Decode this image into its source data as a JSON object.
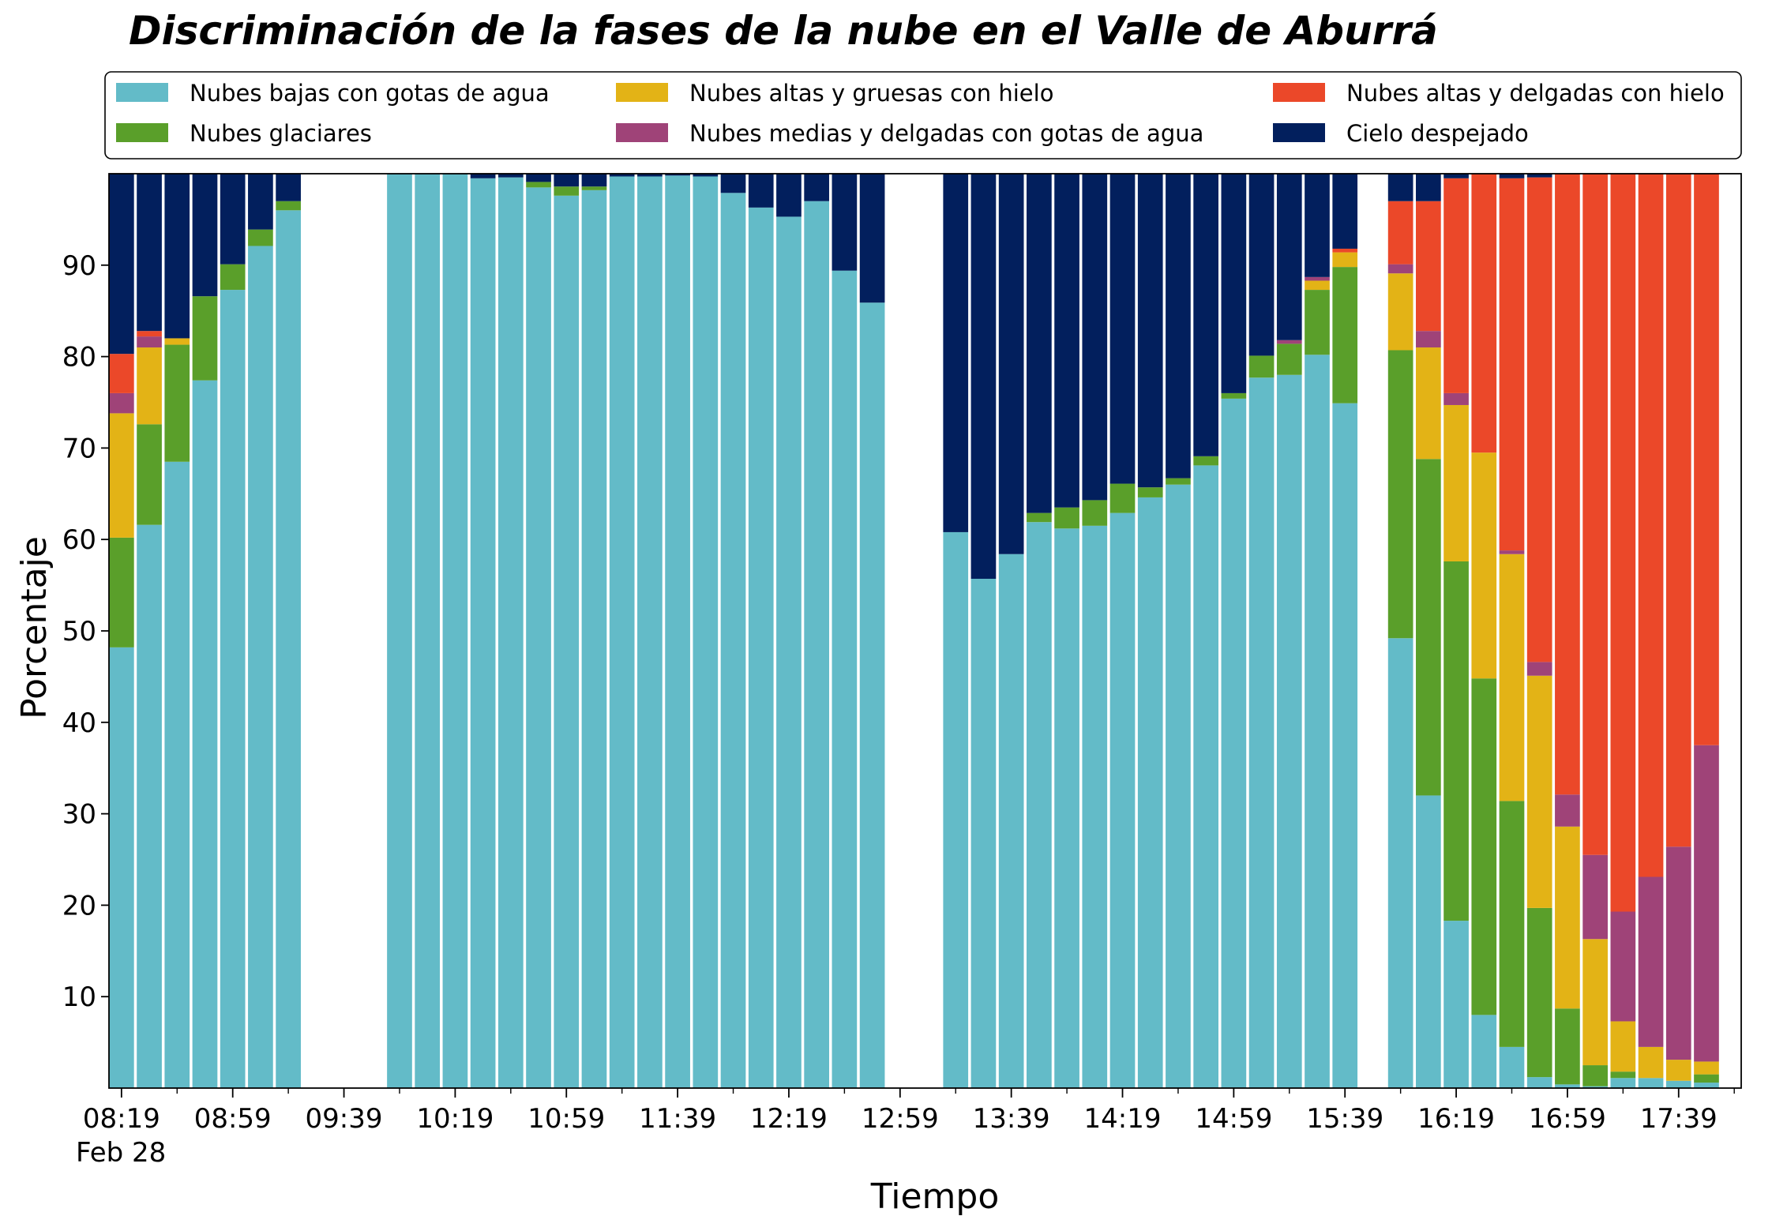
{
  "chart_data": {
    "type": "bar",
    "stacked": true,
    "title": "Discriminación de la fases de la nube en el Valle de Aburrá",
    "xlabel": "Tiempo",
    "ylabel": "Porcentaje",
    "ylim": [
      0,
      100
    ],
    "yticks": [
      10,
      20,
      30,
      40,
      50,
      60,
      70,
      80,
      90
    ],
    "x_date_label": "Feb 28",
    "legend_position": "top",
    "grid": false,
    "x_ticks": [
      {
        "label": "08:19",
        "minute": 0
      },
      {
        "label": "08:59",
        "minute": 40
      },
      {
        "label": "09:39",
        "minute": 80
      },
      {
        "label": "10:19",
        "minute": 120
      },
      {
        "label": "10:59",
        "minute": 160
      },
      {
        "label": "11:39",
        "minute": 200
      },
      {
        "label": "12:19",
        "minute": 240
      },
      {
        "label": "12:59",
        "minute": 280
      },
      {
        "label": "13:39",
        "minute": 320
      },
      {
        "label": "14:19",
        "minute": 360
      },
      {
        "label": "14:59",
        "minute": 400
      },
      {
        "label": "15:39",
        "minute": 440
      },
      {
        "label": "16:19",
        "minute": 480
      },
      {
        "label": "16:59",
        "minute": 520
      },
      {
        "label": "17:39",
        "minute": 560
      }
    ],
    "series": [
      {
        "name": "Nubes bajas con gotas de agua",
        "color": "#63bbc8"
      },
      {
        "name": "Nubes glaciares",
        "color": "#5a9f2a"
      },
      {
        "name": "Nubes altas y gruesas con hielo",
        "color": "#e3b316"
      },
      {
        "name": "Nubes medias y delgadas con gotas de agua",
        "color": "#9f4378"
      },
      {
        "name": "Nubes altas y delgadas con hielo",
        "color": "#eb4829"
      },
      {
        "name": "Cielo despejado",
        "color": "#021f5d"
      }
    ],
    "bars": [
      {
        "minute": 0,
        "values": [
          48.2,
          12.0,
          13.6,
          2.2,
          4.3,
          19.7
        ]
      },
      {
        "minute": 10,
        "values": [
          61.6,
          11.0,
          8.4,
          1.2,
          0.6,
          17.2
        ]
      },
      {
        "minute": 20,
        "values": [
          68.5,
          12.8,
          0.7,
          0.0,
          0.0,
          18.0
        ]
      },
      {
        "minute": 30,
        "values": [
          77.4,
          9.2,
          0.0,
          0.0,
          0.0,
          13.4
        ]
      },
      {
        "minute": 40,
        "values": [
          87.3,
          2.8,
          0.0,
          0.0,
          0.0,
          9.9
        ]
      },
      {
        "minute": 50,
        "values": [
          92.1,
          1.8,
          0.0,
          0.0,
          0.0,
          6.1
        ]
      },
      {
        "minute": 60,
        "values": [
          96.0,
          1.0,
          0.0,
          0.0,
          0.0,
          3.0
        ]
      },
      {
        "minute": 100,
        "values": [
          100.0,
          0.0,
          0.0,
          0.0,
          0.0,
          0.0
        ]
      },
      {
        "minute": 110,
        "values": [
          100.0,
          0.0,
          0.0,
          0.0,
          0.0,
          0.0
        ]
      },
      {
        "minute": 120,
        "values": [
          100.0,
          0.0,
          0.0,
          0.0,
          0.0,
          0.0
        ]
      },
      {
        "minute": 130,
        "values": [
          99.5,
          0.0,
          0.0,
          0.0,
          0.0,
          0.5
        ]
      },
      {
        "minute": 140,
        "values": [
          99.6,
          0.0,
          0.0,
          0.0,
          0.0,
          0.4
        ]
      },
      {
        "minute": 150,
        "values": [
          98.5,
          0.6,
          0.0,
          0.0,
          0.0,
          0.9
        ]
      },
      {
        "minute": 160,
        "values": [
          97.6,
          1.0,
          0.0,
          0.0,
          0.0,
          1.4
        ]
      },
      {
        "minute": 170,
        "values": [
          98.2,
          0.4,
          0.0,
          0.0,
          0.0,
          1.4
        ]
      },
      {
        "minute": 180,
        "values": [
          99.7,
          0.0,
          0.0,
          0.0,
          0.0,
          0.3
        ]
      },
      {
        "minute": 190,
        "values": [
          99.7,
          0.0,
          0.0,
          0.0,
          0.0,
          0.3
        ]
      },
      {
        "minute": 200,
        "values": [
          99.8,
          0.0,
          0.0,
          0.0,
          0.0,
          0.2
        ]
      },
      {
        "minute": 210,
        "values": [
          99.7,
          0.0,
          0.0,
          0.0,
          0.0,
          0.3
        ]
      },
      {
        "minute": 220,
        "values": [
          97.9,
          0.0,
          0.0,
          0.0,
          0.0,
          2.1
        ]
      },
      {
        "minute": 230,
        "values": [
          96.3,
          0.0,
          0.0,
          0.0,
          0.0,
          3.7
        ]
      },
      {
        "minute": 240,
        "values": [
          95.3,
          0.0,
          0.0,
          0.0,
          0.0,
          4.7
        ]
      },
      {
        "minute": 250,
        "values": [
          97.0,
          0.0,
          0.0,
          0.0,
          0.0,
          3.0
        ]
      },
      {
        "minute": 260,
        "values": [
          89.4,
          0.0,
          0.0,
          0.0,
          0.0,
          10.6
        ]
      },
      {
        "minute": 270,
        "values": [
          85.9,
          0.0,
          0.0,
          0.0,
          0.0,
          14.1
        ]
      },
      {
        "minute": 300,
        "values": [
          60.8,
          0.0,
          0.0,
          0.0,
          0.0,
          39.2
        ]
      },
      {
        "minute": 310,
        "values": [
          55.7,
          0.0,
          0.0,
          0.0,
          0.0,
          44.3
        ]
      },
      {
        "minute": 320,
        "values": [
          58.4,
          0.0,
          0.0,
          0.0,
          0.0,
          41.6
        ]
      },
      {
        "minute": 330,
        "values": [
          61.9,
          1.0,
          0.0,
          0.0,
          0.0,
          37.1
        ]
      },
      {
        "minute": 340,
        "values": [
          61.2,
          2.3,
          0.0,
          0.0,
          0.0,
          36.5
        ]
      },
      {
        "minute": 350,
        "values": [
          61.5,
          2.8,
          0.0,
          0.0,
          0.0,
          35.7
        ]
      },
      {
        "minute": 360,
        "values": [
          62.9,
          3.2,
          0.0,
          0.0,
          0.0,
          33.9
        ]
      },
      {
        "minute": 370,
        "values": [
          64.6,
          1.1,
          0.0,
          0.0,
          0.0,
          34.3
        ]
      },
      {
        "minute": 380,
        "values": [
          66.0,
          0.7,
          0.0,
          0.0,
          0.0,
          33.3
        ]
      },
      {
        "minute": 390,
        "values": [
          68.1,
          1.0,
          0.0,
          0.0,
          0.0,
          30.9
        ]
      },
      {
        "minute": 400,
        "values": [
          75.4,
          0.6,
          0.0,
          0.0,
          0.0,
          24.0
        ]
      },
      {
        "minute": 410,
        "values": [
          77.7,
          2.4,
          0.0,
          0.0,
          0.0,
          19.9
        ]
      },
      {
        "minute": 420,
        "values": [
          78.0,
          3.4,
          0.0,
          0.4,
          0.0,
          18.2
        ]
      },
      {
        "minute": 430,
        "values": [
          80.2,
          7.1,
          1.0,
          0.4,
          0.0,
          11.3
        ]
      },
      {
        "minute": 440,
        "values": [
          74.9,
          14.9,
          1.6,
          0.0,
          0.4,
          8.2
        ]
      },
      {
        "minute": 460,
        "values": [
          49.2,
          31.5,
          8.4,
          1.0,
          6.9,
          3.0
        ]
      },
      {
        "minute": 470,
        "values": [
          32.0,
          36.8,
          12.2,
          1.8,
          14.2,
          3.0
        ]
      },
      {
        "minute": 480,
        "values": [
          18.3,
          39.3,
          17.1,
          1.3,
          23.5,
          0.5
        ]
      },
      {
        "minute": 490,
        "values": [
          8.0,
          36.8,
          24.7,
          0.0,
          30.5,
          0.0
        ]
      },
      {
        "minute": 500,
        "values": [
          4.5,
          26.9,
          27.0,
          0.4,
          40.7,
          0.5
        ]
      },
      {
        "minute": 510,
        "values": [
          1.2,
          18.5,
          25.4,
          1.5,
          53.0,
          0.4
        ]
      },
      {
        "minute": 520,
        "values": [
          0.4,
          8.3,
          19.9,
          3.5,
          67.9,
          0.0
        ]
      },
      {
        "minute": 530,
        "values": [
          0.2,
          2.3,
          13.8,
          9.2,
          74.5,
          0.0
        ]
      },
      {
        "minute": 540,
        "values": [
          1.1,
          0.7,
          5.5,
          12.0,
          80.7,
          0.0
        ]
      },
      {
        "minute": 550,
        "values": [
          1.1,
          0.0,
          3.4,
          18.6,
          76.9,
          0.0
        ]
      },
      {
        "minute": 560,
        "values": [
          0.8,
          0.0,
          2.3,
          23.3,
          73.6,
          0.0
        ]
      },
      {
        "minute": 570,
        "values": [
          0.6,
          0.9,
          1.4,
          34.6,
          62.5,
          0.0
        ]
      }
    ]
  }
}
